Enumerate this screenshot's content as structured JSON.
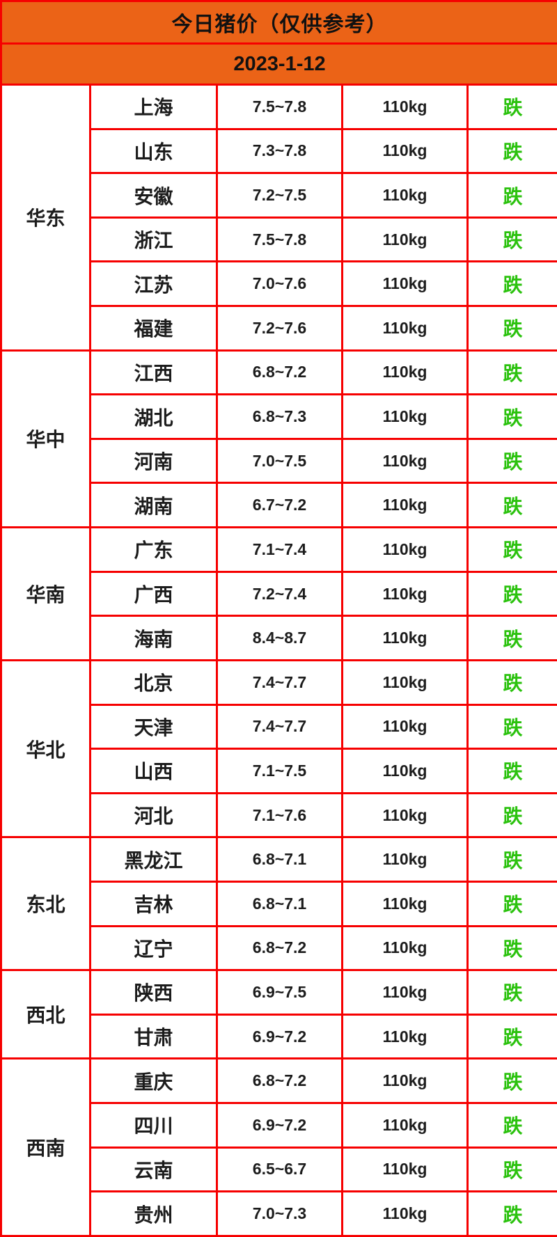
{
  "header": {
    "title": "今日猪价（仅供参考）",
    "date": "2023-1-12"
  },
  "colors": {
    "banner_orange": "#eb6317",
    "border_red": "#f60000",
    "status_fall_green": "#2bc20e",
    "text_black": "#1c1c1c",
    "cell_white": "#ffffff"
  },
  "table": {
    "regions": [
      {
        "name": "华东",
        "rows": [
          {
            "province": "上海",
            "price": "7.5~7.8",
            "weight": "110kg",
            "status": "跌"
          },
          {
            "province": "山东",
            "price": "7.3~7.8",
            "weight": "110kg",
            "status": "跌"
          },
          {
            "province": "安徽",
            "price": "7.2~7.5",
            "weight": "110kg",
            "status": "跌"
          },
          {
            "province": "浙江",
            "price": "7.5~7.8",
            "weight": "110kg",
            "status": "跌"
          },
          {
            "province": "江苏",
            "price": "7.0~7.6",
            "weight": "110kg",
            "status": "跌"
          },
          {
            "province": "福建",
            "price": "7.2~7.6",
            "weight": "110kg",
            "status": "跌"
          }
        ]
      },
      {
        "name": "华中",
        "rows": [
          {
            "province": "江西",
            "price": "6.8~7.2",
            "weight": "110kg",
            "status": "跌"
          },
          {
            "province": "湖北",
            "price": "6.8~7.3",
            "weight": "110kg",
            "status": "跌"
          },
          {
            "province": "河南",
            "price": "7.0~7.5",
            "weight": "110kg",
            "status": "跌"
          },
          {
            "province": "湖南",
            "price": "6.7~7.2",
            "weight": "110kg",
            "status": "跌"
          }
        ]
      },
      {
        "name": "华南",
        "rows": [
          {
            "province": "广东",
            "price": "7.1~7.4",
            "weight": "110kg",
            "status": "跌"
          },
          {
            "province": "广西",
            "price": "7.2~7.4",
            "weight": "110kg",
            "status": "跌"
          },
          {
            "province": "海南",
            "price": "8.4~8.7",
            "weight": "110kg",
            "status": "跌"
          }
        ]
      },
      {
        "name": "华北",
        "rows": [
          {
            "province": "北京",
            "price": "7.4~7.7",
            "weight": "110kg",
            "status": "跌"
          },
          {
            "province": "天津",
            "price": "7.4~7.7",
            "weight": "110kg",
            "status": "跌"
          },
          {
            "province": "山西",
            "price": "7.1~7.5",
            "weight": "110kg",
            "status": "跌"
          },
          {
            "province": "河北",
            "price": "7.1~7.6",
            "weight": "110kg",
            "status": "跌"
          }
        ]
      },
      {
        "name": "东北",
        "rows": [
          {
            "province": "黑龙江",
            "price": "6.8~7.1",
            "weight": "110kg",
            "status": "跌"
          },
          {
            "province": "吉林",
            "price": "6.8~7.1",
            "weight": "110kg",
            "status": "跌"
          },
          {
            "province": "辽宁",
            "price": "6.8~7.2",
            "weight": "110kg",
            "status": "跌"
          }
        ]
      },
      {
        "name": "西北",
        "rows": [
          {
            "province": "陕西",
            "price": "6.9~7.5",
            "weight": "110kg",
            "status": "跌"
          },
          {
            "province": "甘肃",
            "price": "6.9~7.2",
            "weight": "110kg",
            "status": "跌"
          }
        ]
      },
      {
        "name": "西南",
        "rows": [
          {
            "province": "重庆",
            "price": "6.8~7.2",
            "weight": "110kg",
            "status": "跌"
          },
          {
            "province": "四川",
            "price": "6.9~7.2",
            "weight": "110kg",
            "status": "跌"
          },
          {
            "province": "云南",
            "price": "6.5~6.7",
            "weight": "110kg",
            "status": "跌"
          },
          {
            "province": "贵州",
            "price": "7.0~7.3",
            "weight": "110kg",
            "status": "跌"
          }
        ]
      }
    ]
  }
}
